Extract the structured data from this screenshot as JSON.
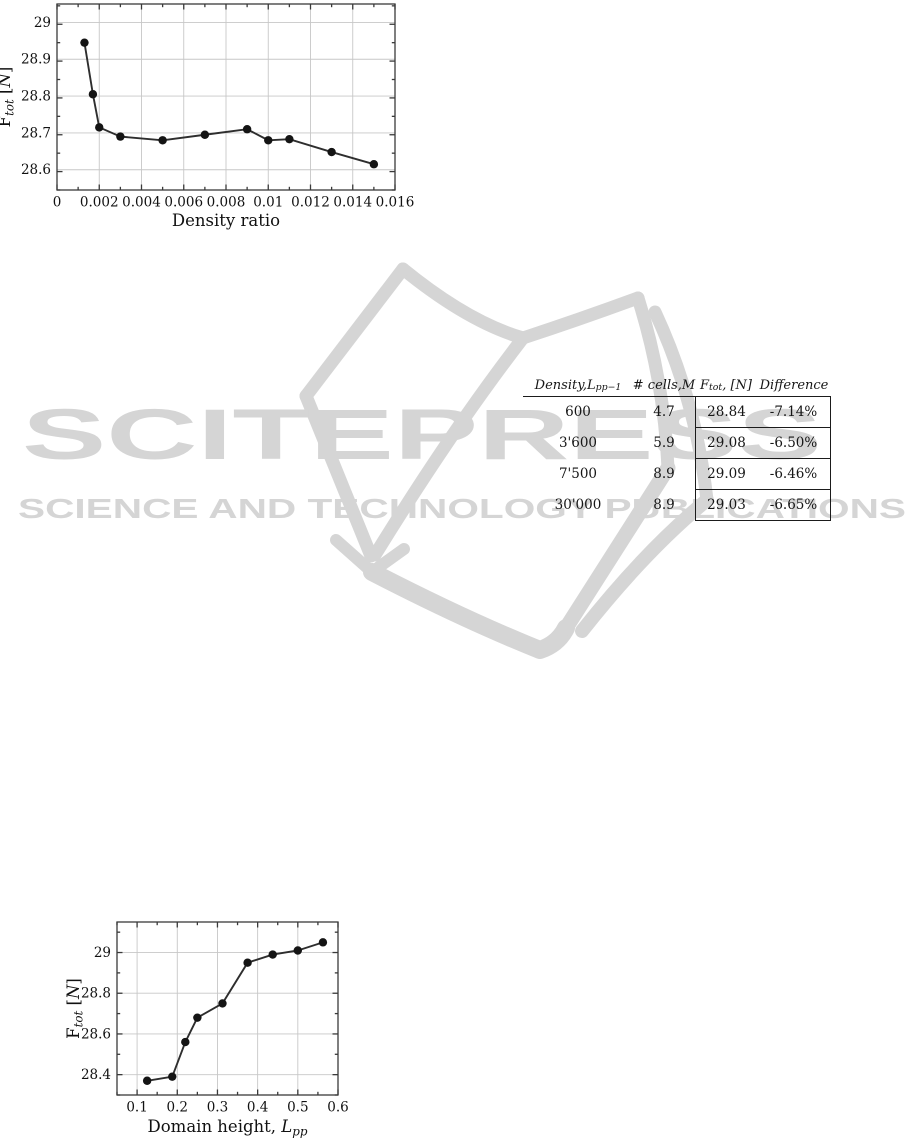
{
  "page": {
    "background": "#ffffff"
  },
  "watermark": {
    "title": "SCITEPRESS",
    "subtitle": "SCIENCE AND TECHNOLOGY PUBLICATIONS",
    "color": "#d5d5d5",
    "icon": "open-book-icon"
  },
  "grid_table": {
    "headers": [
      {
        "label": "Density, Lpp^-1",
        "parts": [
          {
            "t": "Density, "
          },
          {
            "t": "L",
            "it": 1
          },
          {
            "t": "pp",
            "sub": 1,
            "it": 1
          },
          {
            "t": "−1",
            "sup": 1
          }
        ]
      },
      {
        "label": "# cells, M",
        "parts": [
          {
            "t": "# cells, "
          },
          {
            "t": "M",
            "it": 1
          }
        ]
      },
      {
        "label": "Ftot, [N]",
        "parts": [
          {
            "t": "F",
            "it": 1
          },
          {
            "t": "tot",
            "sub": 1,
            "it": 1
          },
          {
            "t": ", ["
          },
          {
            "t": "N",
            "it": 1
          },
          {
            "t": "]"
          }
        ]
      },
      {
        "label": "Difference",
        "parts": [
          {
            "t": "Difference"
          }
        ]
      }
    ],
    "rows": [
      [
        "600",
        "4.7",
        "28.84",
        "-7.14%"
      ],
      [
        "3'600",
        "5.9",
        "29.08",
        "-6.50%"
      ],
      [
        "7'500",
        "8.9",
        "29.09",
        "-6.46%"
      ],
      [
        "30'000",
        "8.9",
        "29.03",
        "-6.65%"
      ]
    ]
  },
  "chart_data": [
    {
      "id": "density-ratio",
      "type": "line",
      "title": "",
      "xlabel": "Density ratio",
      "xlabel_parts": [
        {
          "t": "Density ratio"
        }
      ],
      "ylabel": "F_tot [N]",
      "ylabel_parts": [
        {
          "t": "F"
        },
        {
          "t": "tot",
          "sub": 1,
          "it": 1
        },
        {
          "t": " ["
        },
        {
          "t": "N",
          "it": 1
        },
        {
          "t": "]"
        }
      ],
      "x": [
        0.0013,
        0.0017,
        0.002,
        0.003,
        0.005,
        0.007,
        0.009,
        0.01,
        0.011,
        0.013,
        0.015
      ],
      "y": [
        28.945,
        28.805,
        28.715,
        28.69,
        28.68,
        28.695,
        28.71,
        28.68,
        28.683,
        28.648,
        28.615
      ],
      "xlim": [
        0,
        0.016
      ],
      "ylim": [
        28.545,
        29.05
      ],
      "xticks": [
        0,
        0.002,
        0.004,
        0.006,
        0.008,
        0.01,
        0.012,
        0.014,
        0.016
      ],
      "xtick_labels": [
        "0",
        "0.002",
        "0.004",
        "0.006",
        "0.008",
        "0.01",
        "0.012",
        "0.014",
        "0.016"
      ],
      "yticks": [
        28.6,
        28.7,
        28.8,
        28.9,
        29
      ],
      "ytick_labels": [
        "28.6",
        "28.7",
        "28.8",
        "28.9",
        "29"
      ],
      "xminor_step": 0.001,
      "yminor_step": 0.05,
      "grid": true,
      "legend": null,
      "line_color": "#2e2e2e",
      "marker": "filled-circle"
    },
    {
      "id": "domain-height",
      "type": "line",
      "title": "",
      "xlabel": "Domain height, L_pp",
      "xlabel_parts": [
        {
          "t": "Domain height, "
        },
        {
          "t": "L",
          "it": 1
        },
        {
          "t": "pp",
          "sub": 1,
          "it": 1
        }
      ],
      "ylabel": "F_tot [N]",
      "ylabel_parts": [
        {
          "t": "F"
        },
        {
          "t": "tot",
          "sub": 1,
          "it": 1
        },
        {
          "t": " ["
        },
        {
          "t": "N",
          "it": 1
        },
        {
          "t": "]"
        }
      ],
      "x": [
        0.125,
        0.1875,
        0.22,
        0.25,
        0.3125,
        0.375,
        0.4375,
        0.5,
        0.5625
      ],
      "y": [
        28.37,
        28.39,
        28.56,
        28.68,
        28.75,
        28.95,
        28.99,
        29.01,
        29.05
      ],
      "xlim": [
        0.05,
        0.6
      ],
      "ylim": [
        28.3,
        29.15
      ],
      "xticks": [
        0.1,
        0.2,
        0.3,
        0.4,
        0.5,
        0.6
      ],
      "xtick_labels": [
        "0.1",
        "0.2",
        "0.3",
        "0.4",
        "0.5",
        "0.6"
      ],
      "yticks": [
        28.4,
        28.6,
        28.8,
        29
      ],
      "ytick_labels": [
        "28.4",
        "28.6",
        "28.8",
        "29"
      ],
      "xminor_step": 0.05,
      "yminor_step": 0.1,
      "grid": true,
      "legend": null,
      "line_color": "#2e2e2e",
      "marker": "filled-circle"
    }
  ]
}
